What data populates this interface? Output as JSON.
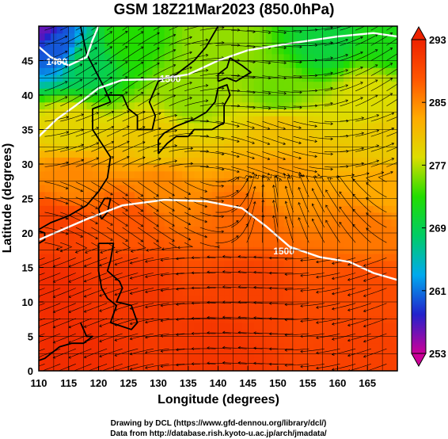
{
  "title": "GSM 18Z21Mar2023 (850.0hPa)",
  "footer": {
    "line1": "Drawing by DCL (https://www.gfd-dennou.org/library/dcl/)",
    "line2": "Data from http://database.rish.kyoto-u.ac.jp/arch/jmadata/"
  },
  "chart_data": {
    "type": "heatmap",
    "title": "GSM 18Z21Mar2023 (850.0hPa)",
    "xlabel": "Longitude (degrees)",
    "ylabel": "Latitude (degrees)",
    "xlim": [
      110,
      170
    ],
    "ylim": [
      0,
      50
    ],
    "x_ticks": [
      "110",
      "115",
      "120",
      "125",
      "130",
      "135",
      "140",
      "145",
      "150",
      "155",
      "160",
      "165"
    ],
    "y_ticks": [
      "0",
      "5",
      "10",
      "15",
      "20",
      "25",
      "30",
      "35",
      "40",
      "45"
    ],
    "grid": true,
    "colorbar": {
      "position": "right",
      "min": 253,
      "max": 293,
      "ticks": [
        "253",
        "261",
        "269",
        "277",
        "285",
        "293"
      ],
      "colors": [
        "#cc0099",
        "#2222cc",
        "#00aaee",
        "#00cc66",
        "#22dd00",
        "#dddd00",
        "#ffaa00",
        "#ff5500",
        "#ee2200"
      ]
    },
    "contour_labels": [
      {
        "text": "1400",
        "lon": 113,
        "lat": 44.5
      },
      {
        "text": "1500",
        "lon": 132,
        "lat": 42
      },
      {
        "text": "1500",
        "lon": 151,
        "lat": 17
      }
    ],
    "temperature_field": [
      {
        "lon": 110,
        "lat": 50,
        "value": 256
      },
      {
        "lon": 113,
        "lat": 47,
        "value": 260
      },
      {
        "lon": 118,
        "lat": 45,
        "value": 269
      },
      {
        "lon": 125,
        "lat": 48,
        "value": 273
      },
      {
        "lon": 140,
        "lat": 48,
        "value": 276
      },
      {
        "lon": 158,
        "lat": 48,
        "value": 270
      },
      {
        "lon": 168,
        "lat": 48,
        "value": 272
      },
      {
        "lon": 135,
        "lat": 40,
        "value": 276
      },
      {
        "lon": 150,
        "lat": 40,
        "value": 275
      },
      {
        "lon": 165,
        "lat": 40,
        "value": 278
      },
      {
        "lon": 115,
        "lat": 35,
        "value": 279
      },
      {
        "lon": 130,
        "lat": 33,
        "value": 280
      },
      {
        "lon": 150,
        "lat": 35,
        "value": 281
      },
      {
        "lon": 168,
        "lat": 33,
        "value": 280
      },
      {
        "lon": 115,
        "lat": 28,
        "value": 285
      },
      {
        "lon": 130,
        "lat": 27,
        "value": 285
      },
      {
        "lon": 150,
        "lat": 28,
        "value": 284
      },
      {
        "lon": 168,
        "lat": 27,
        "value": 283
      },
      {
        "lon": 113,
        "lat": 21,
        "value": 290
      },
      {
        "lon": 125,
        "lat": 22,
        "value": 288
      },
      {
        "lon": 145,
        "lat": 22,
        "value": 287
      },
      {
        "lon": 165,
        "lat": 20,
        "value": 286
      },
      {
        "lon": 112,
        "lat": 12,
        "value": 292
      },
      {
        "lon": 125,
        "lat": 12,
        "value": 291
      },
      {
        "lon": 145,
        "lat": 12,
        "value": 290
      },
      {
        "lon": 165,
        "lat": 12,
        "value": 289
      },
      {
        "lon": 115,
        "lat": 3,
        "value": 292
      },
      {
        "lon": 140,
        "lat": 3,
        "value": 291
      },
      {
        "lon": 165,
        "lat": 3,
        "value": 290
      }
    ]
  }
}
